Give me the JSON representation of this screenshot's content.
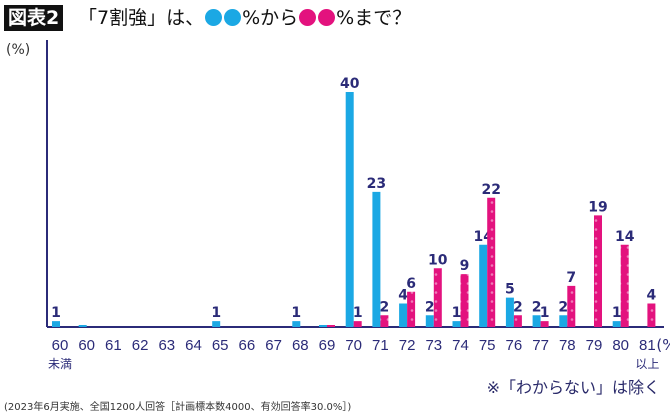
{
  "header": {
    "figure_label": "図表2",
    "title_prefix": "「7割強」は、",
    "title_mid": "%から",
    "title_suffix": "%まで？",
    "blue_dots": "●●",
    "pink_dots": "●●"
  },
  "colors": {
    "blue": "#1ba8e4",
    "pink": "#e3127e",
    "axis": "#2b2b78"
  },
  "chart_data": {
    "type": "bar",
    "ylabel": "(%)",
    "xunit": "(%)",
    "categories": [
      "60\n未満",
      "60",
      "61",
      "62",
      "63",
      "64",
      "65",
      "66",
      "67",
      "68",
      "69",
      "70",
      "71",
      "72",
      "73",
      "74",
      "75",
      "76",
      "77",
      "78",
      "79",
      "80",
      "81\n以上"
    ],
    "series": [
      {
        "color": "#1ba8e4",
        "values": [
          1,
          0.3,
          0,
          0,
          0,
          0,
          1,
          0,
          0,
          1,
          0.3,
          40,
          23,
          4,
          2,
          1,
          14,
          5,
          2,
          2,
          0,
          1,
          0
        ]
      },
      {
        "color": "#e3127e",
        "values": [
          0,
          0,
          0,
          0,
          0,
          0,
          0,
          0,
          0,
          0,
          0.3,
          1,
          2,
          6,
          10,
          9,
          22,
          2,
          1,
          7,
          19,
          14,
          4
        ]
      }
    ],
    "ylim": [
      0,
      45
    ],
    "grid": false
  },
  "note": "※「わからない」は除く",
  "source": "(2023年6月実施、全国1200人回答［計画標本数4000、有効回答率30.0%］)"
}
